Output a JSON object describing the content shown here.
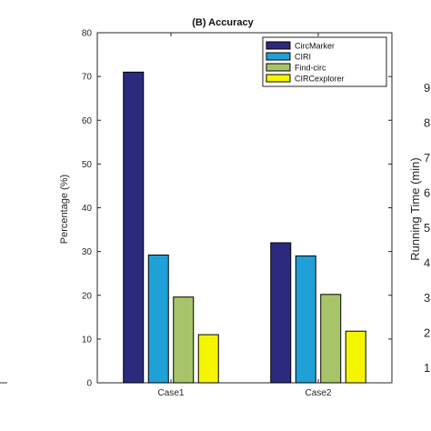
{
  "chart_data": {
    "type": "bar",
    "title": "(B) Accuracy",
    "ylabel": "Percentage (%)",
    "xlabel": "",
    "categories": [
      "Case1",
      "Case2"
    ],
    "ylim": [
      0,
      80
    ],
    "yticks": [
      0,
      10,
      20,
      30,
      40,
      50,
      60,
      70,
      80
    ],
    "legend_position": "top-right",
    "series": [
      {
        "name": "CircMarker",
        "color": "#2b2a7e",
        "values": [
          71,
          32
        ]
      },
      {
        "name": "CIRI",
        "color": "#1fa0d6",
        "values": [
          29.2,
          29
        ]
      },
      {
        "name": "Find-circ",
        "color": "#a8c46a",
        "values": [
          19.6,
          20.2
        ]
      },
      {
        "name": "CIRCexplorer",
        "color": "#f5f500",
        "values": [
          11,
          11.8
        ]
      }
    ]
  },
  "adjacent_panel": {
    "ylabel": "Running Time (min)",
    "tick_fragments": [
      "9",
      "8",
      "7",
      "6",
      "5",
      "4",
      "3",
      "2",
      "1"
    ]
  }
}
